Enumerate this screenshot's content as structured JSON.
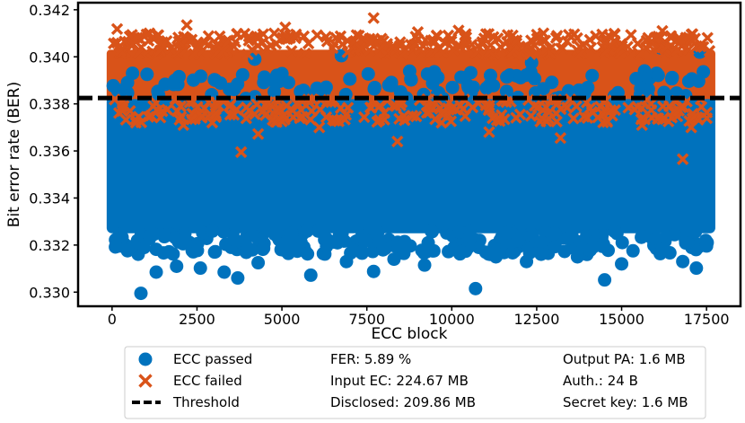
{
  "chart_data": {
    "type": "scatter",
    "xlabel": "ECC block",
    "ylabel": "Bit error rate (BER)",
    "xlim": [
      -1000,
      18500
    ],
    "ylim": [
      0.3294,
      0.3423
    ],
    "xticks": [
      {
        "value": 0,
        "label": "0"
      },
      {
        "value": 2500,
        "label": "2500"
      },
      {
        "value": 5000,
        "label": "5000"
      },
      {
        "value": 7500,
        "label": "7500"
      },
      {
        "value": 10000,
        "label": "10000"
      },
      {
        "value": 12500,
        "label": "12500"
      },
      {
        "value": 15000,
        "label": "15000"
      },
      {
        "value": 17500,
        "label": "17500"
      }
    ],
    "yticks": [
      {
        "value": 0.33,
        "label": "0.330"
      },
      {
        "value": 0.332,
        "label": "0.332"
      },
      {
        "value": 0.334,
        "label": "0.334"
      },
      {
        "value": 0.336,
        "label": "0.336"
      },
      {
        "value": 0.338,
        "label": "0.338"
      },
      {
        "value": 0.34,
        "label": "0.340"
      },
      {
        "value": 0.342,
        "label": "0.342"
      }
    ],
    "x_range": [
      0,
      17600
    ],
    "threshold": 0.33825,
    "series": [
      {
        "name": "ECC passed",
        "marker": "circle",
        "color": "#0072bd",
        "dense_band": [
          0.3325,
          0.3384
        ],
        "points": [
          {
            "x": 850,
            "y": 0.32995
          },
          {
            "x": 10700,
            "y": 0.33015
          },
          {
            "x": 14500,
            "y": 0.33052
          },
          {
            "x": 3700,
            "y": 0.3306
          },
          {
            "x": 1900,
            "y": 0.3311
          },
          {
            "x": 5850,
            "y": 0.33072
          },
          {
            "x": 7700,
            "y": 0.33088
          },
          {
            "x": 12200,
            "y": 0.3313
          },
          {
            "x": 17200,
            "y": 0.33102
          },
          {
            "x": 2600,
            "y": 0.33102
          },
          {
            "x": 3300,
            "y": 0.33085
          },
          {
            "x": 1300,
            "y": 0.33085
          },
          {
            "x": 9200,
            "y": 0.33115
          },
          {
            "x": 16800,
            "y": 0.3313
          },
          {
            "x": 15000,
            "y": 0.3312
          },
          {
            "x": 6900,
            "y": 0.3313
          },
          {
            "x": 4300,
            "y": 0.33125
          },
          {
            "x": 11300,
            "y": 0.3315
          },
          {
            "x": 8300,
            "y": 0.3314
          },
          {
            "x": 13700,
            "y": 0.3315
          },
          {
            "x": 100,
            "y": 0.33192
          },
          {
            "x": 17500,
            "y": 0.33196
          },
          {
            "x": 16150,
            "y": 0.34038
          },
          {
            "x": 6750,
            "y": 0.34005
          },
          {
            "x": 17300,
            "y": 0.3402
          },
          {
            "x": 12350,
            "y": 0.33975
          },
          {
            "x": 4200,
            "y": 0.3399
          }
        ]
      },
      {
        "name": "ECC failed",
        "marker": "x",
        "color": "#d95319",
        "dense_band": [
          0.3382,
          0.3403
        ],
        "points": [
          {
            "x": 7700,
            "y": 0.34165
          },
          {
            "x": 2200,
            "y": 0.34135
          },
          {
            "x": 5100,
            "y": 0.34125
          },
          {
            "x": 150,
            "y": 0.34118
          },
          {
            "x": 16200,
            "y": 0.3411
          },
          {
            "x": 9000,
            "y": 0.34105
          },
          {
            "x": 10200,
            "y": 0.34112
          },
          {
            "x": 12700,
            "y": 0.341
          },
          {
            "x": 3900,
            "y": 0.34098
          },
          {
            "x": 1100,
            "y": 0.341
          },
          {
            "x": 14800,
            "y": 0.34095
          },
          {
            "x": 6300,
            "y": 0.34085
          },
          {
            "x": 3800,
            "y": 0.33595
          },
          {
            "x": 16800,
            "y": 0.33565
          },
          {
            "x": 4300,
            "y": 0.33672
          },
          {
            "x": 8400,
            "y": 0.3364
          },
          {
            "x": 13200,
            "y": 0.33655
          },
          {
            "x": 17050,
            "y": 0.337
          },
          {
            "x": 2100,
            "y": 0.3371
          },
          {
            "x": 11100,
            "y": 0.3368
          },
          {
            "x": 9700,
            "y": 0.3372
          },
          {
            "x": 6100,
            "y": 0.337
          },
          {
            "x": 15600,
            "y": 0.3371
          },
          {
            "x": 700,
            "y": 0.3372
          }
        ]
      }
    ],
    "legend": {
      "position": "bottom",
      "entries": [
        "ECC passed",
        "ECC failed",
        "Threshold"
      ],
      "stats": [
        "FER: 5.89 %",
        "Input EC: 224.67 MB",
        "Disclosed: 209.86 MB",
        "Output PA: 1.6 MB",
        "Auth.: 24 B",
        "Secret key: 1.6 MB"
      ]
    },
    "colors": {
      "passed": "#0072bd",
      "failed": "#d95319",
      "threshold": "#000000"
    }
  }
}
